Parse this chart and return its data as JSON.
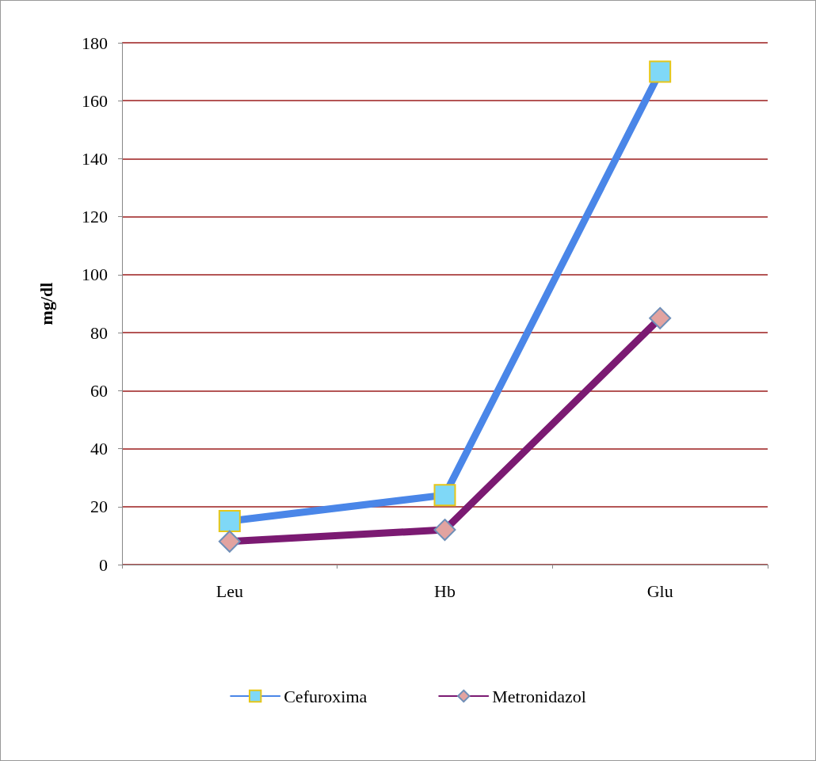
{
  "chart_data": {
    "type": "line",
    "ylabel": "mg/dl",
    "categories": [
      "Leu",
      "Hb",
      "Glu"
    ],
    "series": [
      {
        "name": "Cefuroxima",
        "color": "#4a86e8",
        "values": [
          15,
          24,
          170
        ],
        "marker": "square"
      },
      {
        "name": "Metronidazol",
        "color": "#7b1a72",
        "values": [
          8,
          12,
          85
        ],
        "marker": "diamond"
      }
    ],
    "ylim": [
      0,
      180
    ],
    "yticks": [
      0,
      20,
      40,
      60,
      80,
      100,
      120,
      140,
      160,
      180
    ],
    "grid": "y",
    "legend": "bottom"
  }
}
